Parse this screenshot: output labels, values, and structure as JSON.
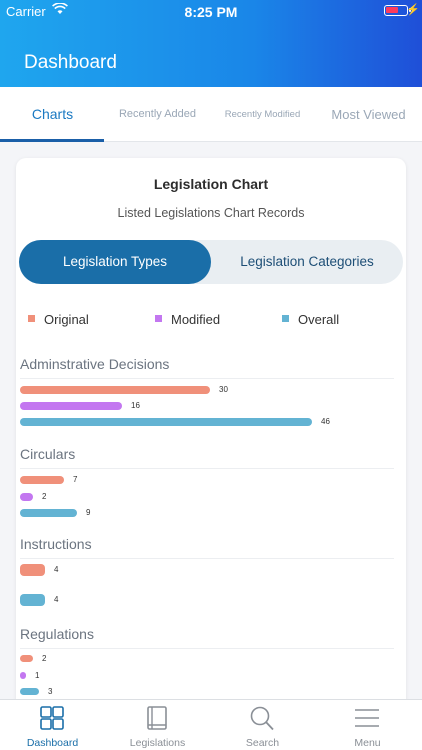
{
  "status": {
    "carrier": "Carrier",
    "time": "8:25 PM"
  },
  "header": {
    "title": "Dashboard"
  },
  "tabs": [
    {
      "label": "Charts"
    },
    {
      "label": "Recently Added"
    },
    {
      "label": "Recently Modified"
    },
    {
      "label": "Most Viewed"
    }
  ],
  "card": {
    "title": "Legislation Chart",
    "subtitle": "Listed Legislations Chart Records",
    "toggle": {
      "active": "Legislation Types",
      "inactive": "Legislation Categories"
    }
  },
  "colors": {
    "original": "#f0907a",
    "modified": "#c377f0",
    "overall": "#63b3d3",
    "accent": "#1a6ea8"
  },
  "chart_data": {
    "type": "bar",
    "orientation": "horizontal",
    "legend": [
      "Original",
      "Modified",
      "Overall"
    ],
    "legend_position": "top",
    "categories": [
      "Adminstrative Decisions",
      "Circulars",
      "Instructions",
      "Regulations"
    ],
    "series": [
      {
        "name": "Original",
        "values": [
          30,
          7,
          4,
          2
        ]
      },
      {
        "name": "Modified",
        "values": [
          16,
          2,
          null,
          1
        ]
      },
      {
        "name": "Overall",
        "values": [
          46,
          9,
          4,
          3
        ]
      }
    ]
  },
  "bottom_nav": [
    {
      "label": "Dashboard"
    },
    {
      "label": "Legislations"
    },
    {
      "label": "Search"
    },
    {
      "label": "Menu"
    }
  ]
}
